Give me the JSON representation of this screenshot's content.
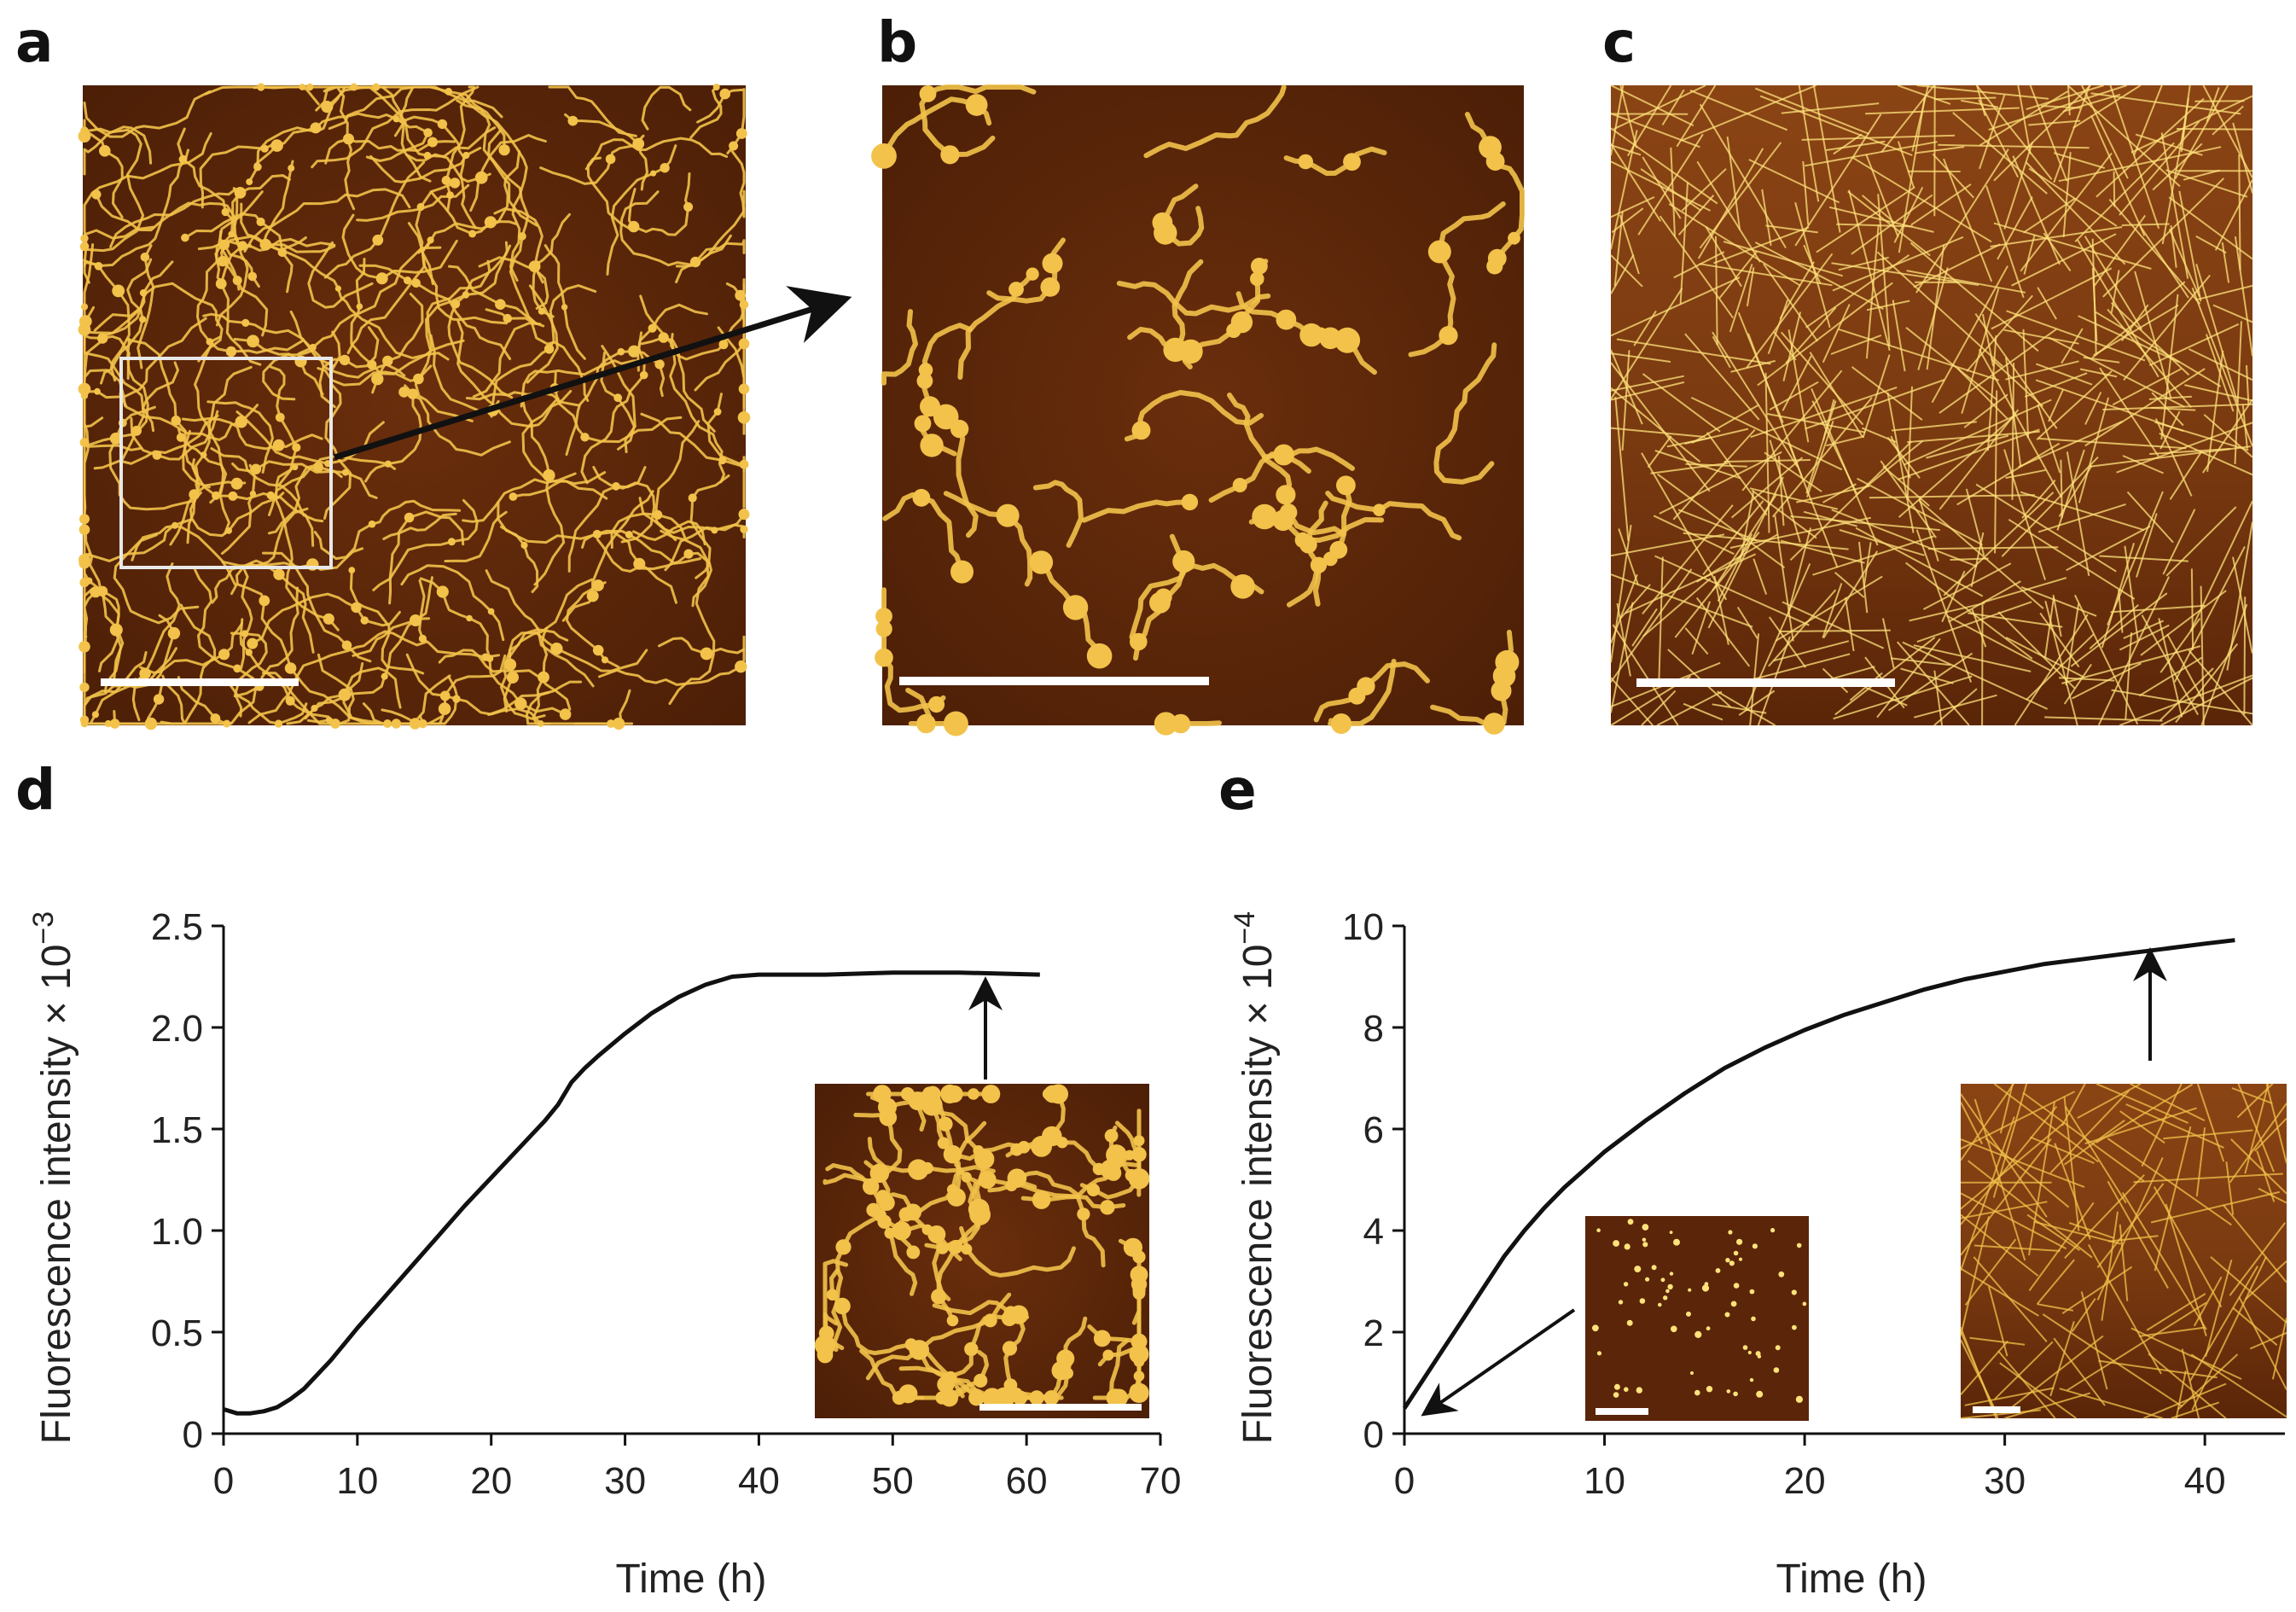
{
  "panels": {
    "a": "a",
    "b": "b",
    "c": "c",
    "d": "d",
    "e": "e"
  },
  "colors": {
    "afm_dark": "#4a1e06",
    "afm_mid": "#7a3810",
    "afm_bright": "#f2c24a",
    "afm_peak": "#ffe27a",
    "curve": "#111111"
  },
  "chart_data": [
    {
      "panel": "d",
      "type": "line",
      "xlabel": "Time (h)",
      "ylabel": "Fluorescence intensity × 10",
      "ylabel_exp": "−3",
      "xlim": [
        0,
        70
      ],
      "ylim": [
        0,
        2.5
      ],
      "xticks": [
        0,
        10,
        20,
        30,
        40,
        50,
        60,
        70
      ],
      "yticks": [
        0,
        0.5,
        1.0,
        1.5,
        2.0,
        2.5
      ],
      "xtick_labels": [
        "0",
        "10",
        "20",
        "30",
        "40",
        "50",
        "60",
        "70"
      ],
      "ytick_labels": [
        "0",
        "0.5",
        "1.0",
        "1.5",
        "2.0",
        "2.5"
      ],
      "series": [
        {
          "x": [
            0,
            1,
            2,
            3,
            4,
            5,
            6,
            7,
            8,
            9,
            10,
            12,
            14,
            16,
            18,
            20,
            22,
            24,
            25,
            26,
            27,
            28,
            30,
            32,
            34,
            36,
            38,
            40,
            45,
            50,
            55,
            61
          ],
          "y": [
            0.12,
            0.1,
            0.1,
            0.11,
            0.13,
            0.17,
            0.22,
            0.29,
            0.36,
            0.44,
            0.52,
            0.67,
            0.82,
            0.97,
            1.12,
            1.26,
            1.4,
            1.54,
            1.62,
            1.73,
            1.8,
            1.86,
            1.97,
            2.07,
            2.15,
            2.21,
            2.25,
            2.26,
            2.26,
            2.27,
            2.27,
            2.26
          ]
        }
      ]
    },
    {
      "panel": "e",
      "type": "line",
      "xlabel": "Time (h)",
      "ylabel": "Fluorescence intensity × 10",
      "ylabel_exp": "−4",
      "xlim": [
        0,
        44
      ],
      "ylim": [
        0,
        10
      ],
      "xticks": [
        0,
        10,
        20,
        30,
        40
      ],
      "yticks": [
        0,
        2,
        4,
        6,
        8,
        10
      ],
      "xtick_labels": [
        "0",
        "10",
        "20",
        "30",
        "40"
      ],
      "ytick_labels": [
        "0",
        "2",
        "4",
        "6",
        "8",
        "10"
      ],
      "series": [
        {
          "x": [
            0,
            1,
            2,
            3,
            4,
            5,
            6,
            7,
            8,
            9,
            10,
            12,
            14,
            16,
            18,
            20,
            22,
            24,
            26,
            28,
            30,
            32,
            34,
            36,
            38,
            40,
            41.5
          ],
          "y": [
            0.5,
            1.1,
            1.7,
            2.3,
            2.9,
            3.5,
            4.0,
            4.45,
            4.85,
            5.2,
            5.55,
            6.15,
            6.7,
            7.2,
            7.6,
            7.95,
            8.25,
            8.5,
            8.75,
            8.95,
            9.1,
            9.25,
            9.35,
            9.45,
            9.55,
            9.65,
            9.72
          ]
        }
      ]
    }
  ]
}
